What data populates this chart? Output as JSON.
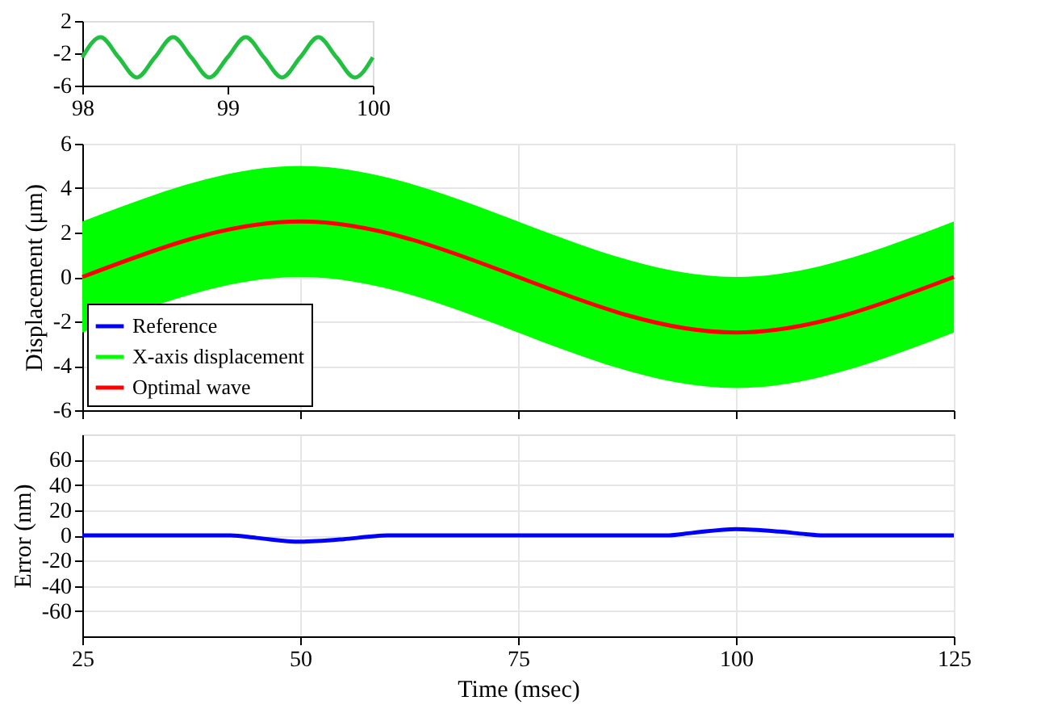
{
  "chart_data": [
    {
      "type": "line",
      "ylabel": "Displacement (μm)",
      "x": [
        25,
        50,
        100,
        125
      ],
      "xlim": [
        25,
        125
      ],
      "xticks": [
        25,
        50,
        75,
        100,
        125
      ],
      "ylim": [
        -6,
        6
      ],
      "yticks": [
        -6,
        -4,
        -2,
        0,
        2,
        4,
        6
      ],
      "grid": true,
      "tick_labels": "y",
      "legend": "bottom left",
      "series": [
        {
          "name": "Reference",
          "color": "#0000ff",
          "values": [
            null,
            null,
            null,
            null
          ]
        },
        {
          "name": "X-axis displacement",
          "color": "#00ff00",
          "type": "area",
          "values": [
            null,
            null,
            null,
            null
          ],
          "lower": [
            -2.5,
            0,
            -5,
            -2.5
          ],
          "upper": [
            2.5,
            5,
            0,
            2.5
          ]
        },
        {
          "name": "Optimal wave",
          "color": "#ff0000",
          "values": [
            0,
            2.5,
            -2.5,
            0
          ]
        }
      ]
    },
    {
      "type": "line",
      "x": [
        98,
        98.125,
        98.25,
        98.375,
        98.5,
        98.625,
        98.75,
        98.875,
        99,
        99.125,
        99.25,
        99.375,
        99.5,
        99.625,
        99.75,
        99.875,
        100
      ],
      "xlim": [
        98,
        100
      ],
      "xticks": [
        98,
        99,
        100
      ],
      "ylim": [
        -6,
        2
      ],
      "yticks": [
        -6,
        -2,
        2
      ],
      "series": [
        {
          "color": "#22c040",
          "values": [
            -2.5,
            0,
            -2.5,
            -5,
            -2.5,
            0,
            -2.5,
            -5,
            -2.5,
            0,
            -2.5,
            -5,
            -2.5,
            0,
            -2.5,
            -5,
            -2.5
          ]
        }
      ]
    },
    {
      "type": "line",
      "xlabel": "Time (msec)",
      "ylabel": "Error (nm)",
      "x": [
        25,
        42,
        45,
        50,
        55,
        58,
        60,
        92,
        95,
        100,
        105,
        108,
        110,
        125
      ],
      "xlim": [
        25,
        125
      ],
      "xticks": [
        25,
        50,
        75,
        100,
        125
      ],
      "ylim": [
        -80,
        80
      ],
      "yticks": [
        -60,
        -40,
        -20,
        0,
        20,
        40,
        60
      ],
      "grid": true,
      "series": [
        {
          "color": "#0000ff",
          "values": [
            0,
            0,
            -2,
            -5,
            -3,
            -1,
            0,
            0,
            2,
            5,
            3,
            1,
            0,
            0
          ]
        }
      ]
    }
  ]
}
